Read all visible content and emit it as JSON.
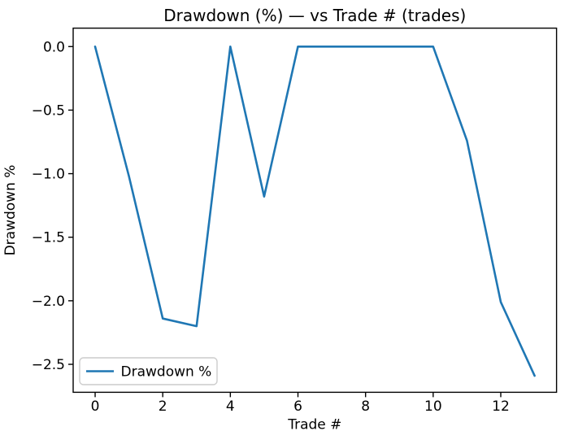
{
  "chart_data": {
    "type": "line",
    "title": "Drawdown (%) — vs Trade # (trades)",
    "xlabel": "Trade #",
    "ylabel": "Drawdown %",
    "x": [
      0,
      1,
      2,
      3,
      4,
      5,
      6,
      7,
      8,
      9,
      10,
      11,
      12,
      13
    ],
    "series": [
      {
        "name": "Drawdown %",
        "color": "#1f77b4",
        "values": [
          0.0,
          -1.02,
          -2.14,
          -2.2,
          0.0,
          -1.18,
          0.0,
          0.0,
          0.0,
          0.0,
          0.0,
          -0.74,
          -2.01,
          -2.59
        ]
      }
    ],
    "xlim": [
      -0.65,
      13.65
    ],
    "ylim": [
      -2.72,
      0.145
    ],
    "xticks": {
      "values": [
        0,
        2,
        4,
        6,
        8,
        10,
        12
      ],
      "labels": [
        "0",
        "2",
        "4",
        "6",
        "8",
        "10",
        "12"
      ]
    },
    "yticks": {
      "values": [
        0.0,
        -0.5,
        -1.0,
        -1.5,
        -2.0,
        -2.5
      ],
      "labels": [
        "0.0",
        "−0.5",
        "−1.0",
        "−1.5",
        "−2.0",
        "−2.5"
      ]
    },
    "grid": false,
    "legend": {
      "position": "lower left",
      "entries": [
        "Drawdown %"
      ]
    },
    "colors": {
      "line": "#1f77b4",
      "background": "#ffffff",
      "spine": "#000000",
      "tick": "#000000",
      "legend_border": "#cccccc",
      "legend_background": "rgba(255,255,255,0.8)"
    }
  }
}
